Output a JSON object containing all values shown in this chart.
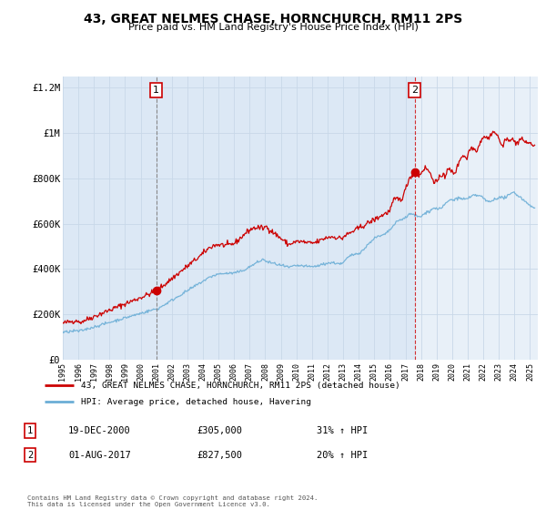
{
  "title": "43, GREAT NELMES CHASE, HORNCHURCH, RM11 2PS",
  "subtitle": "Price paid vs. HM Land Registry's House Price Index (HPI)",
  "plot_bg_color": "#dce8f5",
  "red_line_label": "43, GREAT NELMES CHASE, HORNCHURCH, RM11 2PS (detached house)",
  "blue_line_label": "HPI: Average price, detached house, Havering",
  "transaction1": {
    "label": "1",
    "date": "19-DEC-2000",
    "price": 305000,
    "hpi_pct": "31% ↑ HPI"
  },
  "transaction2": {
    "label": "2",
    "date": "01-AUG-2017",
    "price": 827500,
    "hpi_pct": "20% ↑ HPI"
  },
  "footer": "Contains HM Land Registry data © Crown copyright and database right 2024.\nThis data is licensed under the Open Government Licence v3.0.",
  "ylim": [
    0,
    1250000
  ],
  "yticks": [
    0,
    200000,
    400000,
    600000,
    800000,
    1000000,
    1200000
  ],
  "ytick_labels": [
    "£0",
    "£200K",
    "£400K",
    "£600K",
    "£800K",
    "£1M",
    "£1.2M"
  ],
  "red_color": "#cc0000",
  "blue_color": "#6baed6",
  "vline1_x": 2001.0,
  "vline2_x": 2017.6,
  "marker1_y": 305000,
  "marker1_x": 2001.0,
  "marker2_y": 827500,
  "marker2_x": 2017.6,
  "xmin": 1995,
  "xmax": 2025.5
}
